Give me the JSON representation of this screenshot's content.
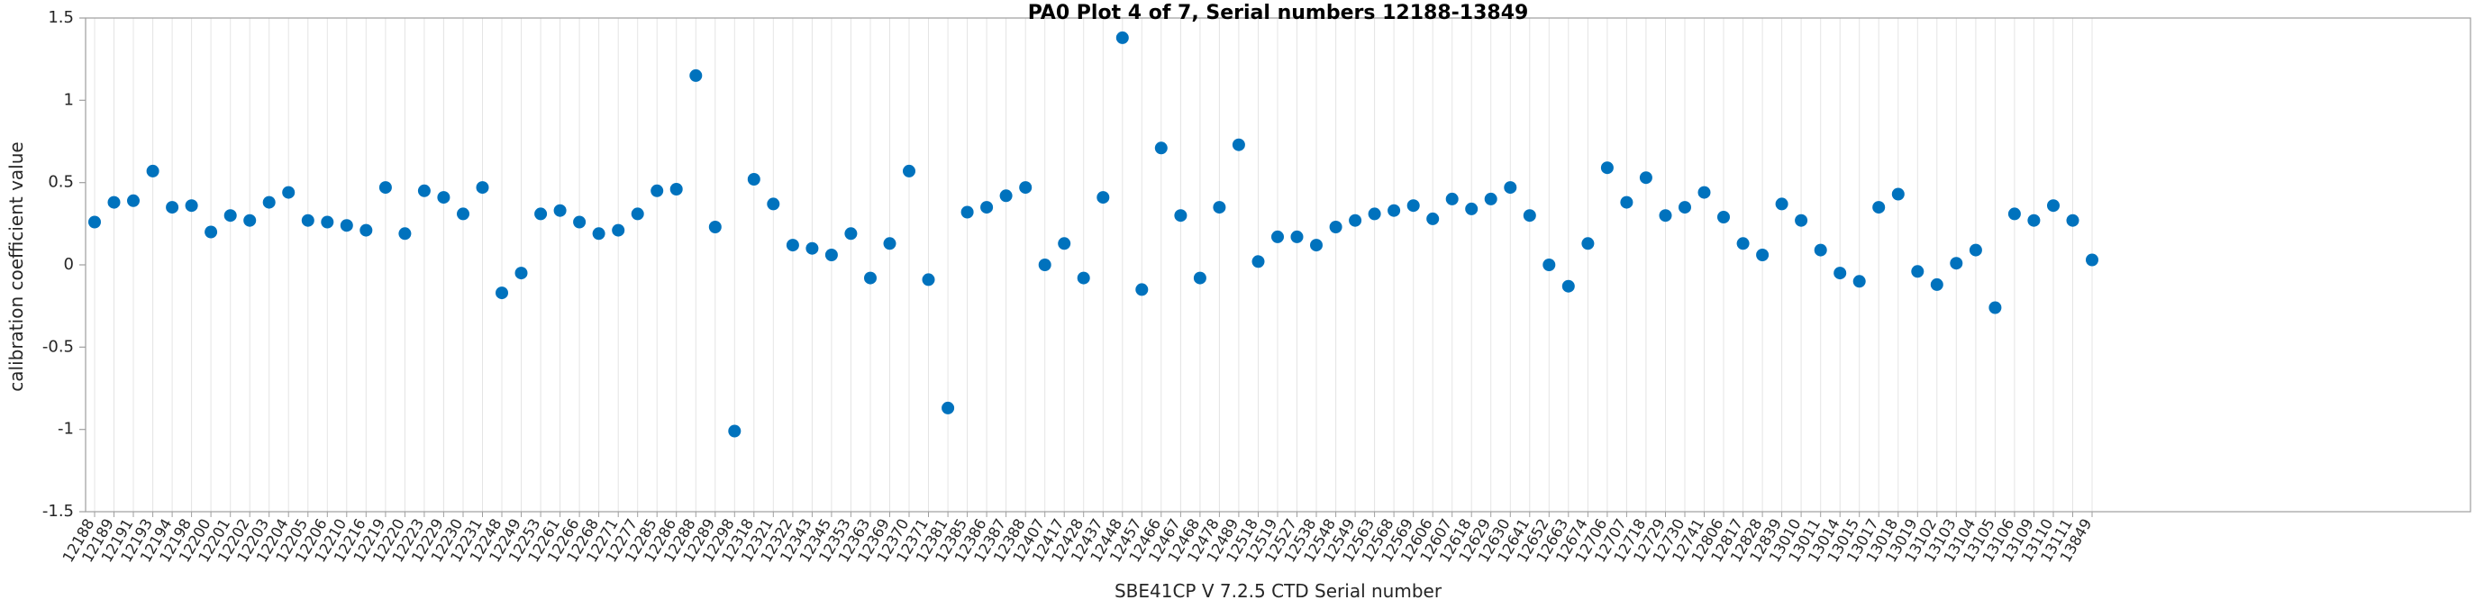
{
  "chart_data": {
    "type": "scatter",
    "title": "PA0 Plot 4 of 7, Serial numbers 12188-13849",
    "xlabel": "SBE41CP V 7.2.5 CTD Serial number",
    "ylabel": "calibration coefficient value",
    "ylim": [
      -1.5,
      1.5
    ],
    "yticks": [
      -1.5,
      -1,
      -0.5,
      0,
      0.5,
      1,
      1.5
    ],
    "grid": "vertical-only",
    "legend": "none",
    "marker_color": "#0072BD",
    "axis_color": "#9e9e9e",
    "grid_color": "#e4e4e4",
    "tick_label_color": "#262626",
    "categories": [
      "12188",
      "12189",
      "12191",
      "12193",
      "12194",
      "12198",
      "12200",
      "12201",
      "12202",
      "12203",
      "12204",
      "12205",
      "12206",
      "12210",
      "12216",
      "12219",
      "12220",
      "12223",
      "12229",
      "12230",
      "12231",
      "12248",
      "12249",
      "12253",
      "12261",
      "12266",
      "12268",
      "12271",
      "12277",
      "12285",
      "12286",
      "12288",
      "12289",
      "12298",
      "12318",
      "12321",
      "12322",
      "12343",
      "12345",
      "12353",
      "12363",
      "12369",
      "12370",
      "12371",
      "12381",
      "12385",
      "12386",
      "12387",
      "12388",
      "12407",
      "12417",
      "12428",
      "12437",
      "12448",
      "12457",
      "12466",
      "12467",
      "12468",
      "12478",
      "12489",
      "12518",
      "12519",
      "12527",
      "12538",
      "12548",
      "12549",
      "12563",
      "12568",
      "12569",
      "12606",
      "12607",
      "12618",
      "12629",
      "12630",
      "12641",
      "12652",
      "12663",
      "12674",
      "12706",
      "12707",
      "12718",
      "12729",
      "12730",
      "12741",
      "12806",
      "12817",
      "12828",
      "12839",
      "13010",
      "13011",
      "13014",
      "13015",
      "13017",
      "13018",
      "13019",
      "13102",
      "13103",
      "13104",
      "13105",
      "13106",
      "13109",
      "13110",
      "13111",
      "13849"
    ],
    "values": [
      0.26,
      0.38,
      0.39,
      0.57,
      0.35,
      0.36,
      0.2,
      0.3,
      0.27,
      0.38,
      0.44,
      0.27,
      0.26,
      0.24,
      0.21,
      0.47,
      0.19,
      0.45,
      0.41,
      0.31,
      0.47,
      -0.17,
      -0.05,
      0.31,
      0.33,
      0.26,
      0.19,
      0.21,
      0.31,
      0.45,
      0.46,
      1.15,
      0.23,
      -1.01,
      0.52,
      0.37,
      0.12,
      0.1,
      0.06,
      0.19,
      -0.08,
      0.13,
      0.57,
      -0.09,
      -0.87,
      0.32,
      0.35,
      0.42,
      0.47,
      0.0,
      0.13,
      -0.08,
      0.41,
      1.38,
      -0.15,
      0.71,
      0.3,
      -0.08,
      0.35,
      0.73,
      0.02,
      0.17,
      0.17,
      0.12,
      0.23,
      0.27,
      0.31,
      0.33,
      0.36,
      0.28,
      0.4,
      0.34,
      0.4,
      0.47,
      0.3,
      0.0,
      -0.13,
      0.13,
      0.59,
      0.38,
      0.53,
      0.3,
      0.35,
      0.44,
      0.29,
      0.13,
      0.06,
      0.37,
      0.27,
      0.09,
      -0.05,
      -0.1,
      0.35,
      0.43,
      -0.04,
      -0.12,
      0.01,
      0.09,
      -0.26,
      0.31,
      0.27,
      0.36,
      0.27,
      0.03
    ]
  }
}
